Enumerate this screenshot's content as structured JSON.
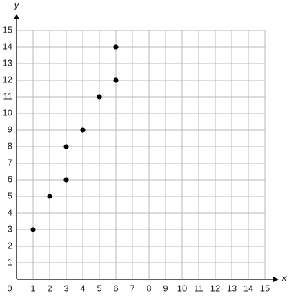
{
  "chart_data": {
    "type": "scatter",
    "x_label": "x",
    "y_label": "y",
    "x": [
      1,
      2,
      3,
      3,
      4,
      5,
      6,
      6
    ],
    "values": [
      3,
      5,
      6,
      8,
      9,
      11,
      12,
      14
    ],
    "color": "#000000",
    "xlim": [
      0,
      15
    ],
    "ylim": [
      0,
      15
    ],
    "xticks": [
      0,
      1,
      2,
      3,
      4,
      5,
      6,
      7,
      8,
      9,
      10,
      11,
      12,
      13,
      14,
      15
    ],
    "yticks": [
      1,
      2,
      3,
      4,
      5,
      6,
      7,
      8,
      9,
      10,
      11,
      12,
      13,
      14,
      15
    ],
    "grid": true
  }
}
